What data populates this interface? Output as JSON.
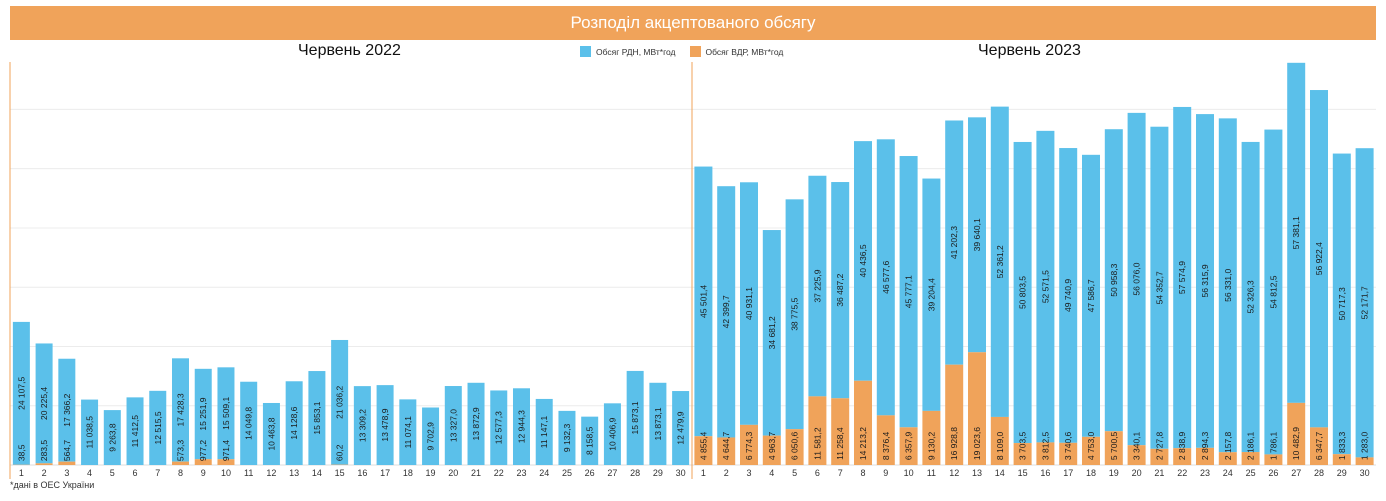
{
  "header": {
    "title": "Розподіл акцептованого обсягу"
  },
  "legend": [
    {
      "label": "Обсяг РДН, МВт*год",
      "color": "#5bc0ea"
    },
    {
      "label": "Обсяг ВДР, МВт*год",
      "color": "#f0a35a"
    }
  ],
  "footnote": "*дані в ОЕС України",
  "colors": {
    "rdn": "#5bc0ea",
    "vdr": "#f0a35a",
    "banner": "#f0a35a",
    "divider": "#f0a35a",
    "grid": "#ececec"
  },
  "chart_data": [
    {
      "type": "bar",
      "stacked": true,
      "title": "Червень 2022",
      "categories": [
        "1",
        "2",
        "3",
        "4",
        "5",
        "6",
        "7",
        "8",
        "9",
        "10",
        "11",
        "12",
        "13",
        "14",
        "15",
        "16",
        "17",
        "18",
        "19",
        "20",
        "21",
        "22",
        "23",
        "24",
        "25",
        "26",
        "27",
        "28",
        "29",
        "30"
      ],
      "series": [
        {
          "name": "Обсяг ВДР, МВт*год",
          "values": [
            38.5,
            283.5,
            564.7,
            0,
            0,
            0,
            0,
            573.3,
            977.2,
            971.4,
            0,
            0,
            0,
            0,
            60.2,
            0,
            0,
            0,
            0,
            0,
            0,
            0,
            0,
            0,
            0,
            0,
            0,
            0,
            0,
            0
          ],
          "labels": [
            "38,5",
            "283,5",
            "564,7",
            "",
            "",
            "",
            "",
            "573,3",
            "977,2",
            "971,4",
            "",
            "",
            "",
            "",
            "60,2",
            "",
            "",
            "",
            "",
            "",
            "",
            "",
            "",
            "",
            "",
            "",
            "",
            "",
            "",
            ""
          ]
        },
        {
          "name": "Обсяг РДН, МВт*год",
          "values": [
            24107.5,
            20225.4,
            17366.2,
            11038.5,
            9263.8,
            11412.5,
            12515.5,
            17428.3,
            15251.9,
            15509.1,
            14049.8,
            10463.8,
            14128.6,
            15853.1,
            21036.2,
            13309.2,
            13478.9,
            11074.1,
            9702.9,
            13327.0,
            13872.9,
            12577.3,
            12944.3,
            11147.1,
            9132.3,
            8158.5,
            10406.9,
            15873.1,
            13873.1,
            12479.9
          ],
          "labels": [
            "24 107,5",
            "20 225,4",
            "17 366,2",
            "11 038,5",
            "9 263,8",
            "11 412,5",
            "12 515,5",
            "17 428,3",
            "15 251,9",
            "15 509,1",
            "14 049,8",
            "10 463,8",
            "14 128,6",
            "15 853,1",
            "21 036,2",
            "13 309,2",
            "13 478,9",
            "11 074,1",
            "9 702,9",
            "13 327,0",
            "13 872,9",
            "12 577,3",
            "12 944,3",
            "11 147,1",
            "9 132,3",
            "8 158,5",
            "10 406,9",
            "15 873,1",
            "13 873,1",
            "12 479,9"
          ]
        }
      ]
    },
    {
      "type": "bar",
      "stacked": true,
      "title": "Червень 2023",
      "categories": [
        "1",
        "2",
        "3",
        "4",
        "5",
        "6",
        "7",
        "8",
        "9",
        "10",
        "11",
        "12",
        "13",
        "14",
        "15",
        "16",
        "17",
        "18",
        "19",
        "20",
        "21",
        "22",
        "23",
        "24",
        "25",
        "26",
        "27",
        "28",
        "29",
        "30"
      ],
      "series": [
        {
          "name": "Обсяг ВДР, МВт*год",
          "values": [
            4855.4,
            4644.7,
            6774.3,
            4963.7,
            6050.6,
            11581.2,
            11258.4,
            14213.2,
            8376.4,
            6357.9,
            9130.2,
            16928.8,
            19023.6,
            8109.0,
            3703.5,
            3812.5,
            3740.6,
            4753.0,
            5700.5,
            3340.1,
            2727.8,
            2838.9,
            2894.3,
            2157.8,
            2186.1,
            1786.1,
            10482.9,
            6347.7,
            1833.3,
            1283.0
          ],
          "labels": [
            "4 855,4",
            "4 644,7",
            "6 774,3",
            "4 963,7",
            "6 050,6",
            "11 581,2",
            "11 258,4",
            "14 213,2",
            "8 376,4",
            "6 357,9",
            "9 130,2",
            "16 928,8",
            "19 023,6",
            "8 109,0",
            "3 703,5",
            "3 812,5",
            "3 740,6",
            "4 753,0",
            "5 700,5",
            "3 340,1",
            "2 727,8",
            "2 838,9",
            "2 894,3",
            "2 157,8",
            "2 186,1",
            "1 786,1",
            "10 482,9",
            "6 347,7",
            "1 833,3",
            "1 283,0"
          ]
        },
        {
          "name": "Обсяг РДН, МВт*год",
          "values": [
            45501.4,
            42399.7,
            40931.1,
            34681.2,
            38775.5,
            37225.9,
            36487.2,
            40436.5,
            46577.6,
            45777.1,
            39204.4,
            41202.3,
            39640.1,
            52361.2,
            50803.5,
            52571.5,
            49740.9,
            47586.7,
            50958.3,
            56076.0,
            54352.7,
            57574.9,
            56315.9,
            56331.0,
            52326.3,
            54812.5,
            57381.1,
            56922.4,
            50717.3,
            52171.7
          ],
          "labels": [
            "45 501,4",
            "42 399,7",
            "40 931,1",
            "34 681,2",
            "38 775,5",
            "37 225,9",
            "36 487,2",
            "40 436,5",
            "46 577,6",
            "45 777,1",
            "39 204,4",
            "41 202,3",
            "39 640,1",
            "52 361,2",
            "50 803,5",
            "52 571,5",
            "49 740,9",
            "47 586,7",
            "50 958,3",
            "56 076,0",
            "54 352,7",
            "57 574,9",
            "56 315,9",
            "56 331,0",
            "52 326,3",
            "54 812,5",
            "57 381,1",
            "56 922,4",
            "50 717,3",
            "52 171,7"
          ]
        }
      ]
    }
  ]
}
